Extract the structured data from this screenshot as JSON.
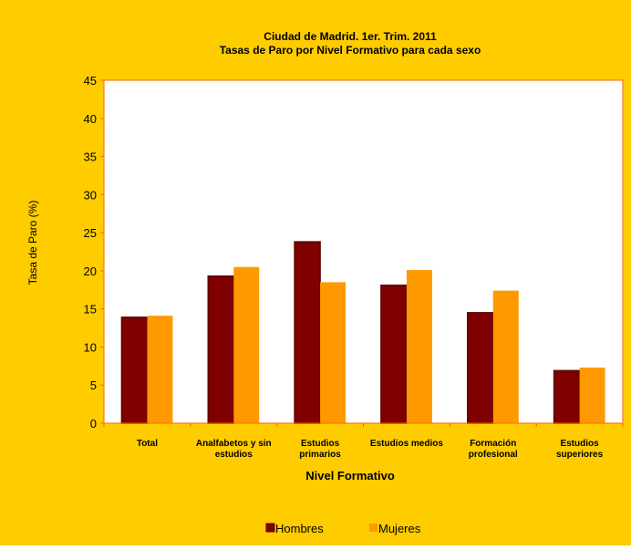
{
  "colors": {
    "background": "#FFCC00",
    "plot_area": "#FFFFFF",
    "plot_border": "#FF6600",
    "hombres": "#800000",
    "mujeres": "#FF9900",
    "text": "#000000"
  },
  "chart_data": {
    "type": "bar",
    "title": "Ciudad de Madrid. 1er. Trim. 2011",
    "subtitle": "Tasas de Paro por Nivel Formativo para cada sexo",
    "xlabel": "Nivel Formativo",
    "ylabel": "Tasa de Paro (%)",
    "ylim": [
      0,
      45
    ],
    "yticks": [
      "0",
      "5",
      "10",
      "15",
      "20",
      "25",
      "30",
      "35",
      "40",
      "45"
    ],
    "grid": false,
    "legend_position": "bottom",
    "categories": [
      [
        "Total"
      ],
      [
        "Analfabetos y sin",
        "estudios"
      ],
      [
        "Estudios",
        "primarios"
      ],
      [
        "Estudios medios"
      ],
      [
        "Formación",
        "profesional"
      ],
      [
        "Estudios",
        "superiores"
      ]
    ],
    "series": [
      {
        "name": "Hombres",
        "color": "#800000",
        "values": [
          13.9,
          19.3,
          23.8,
          18.1,
          14.5,
          6.9
        ]
      },
      {
        "name": "Mujeres",
        "color": "#FF9900",
        "values": [
          14.1,
          20.5,
          18.5,
          20.1,
          17.4,
          7.3
        ]
      }
    ]
  }
}
